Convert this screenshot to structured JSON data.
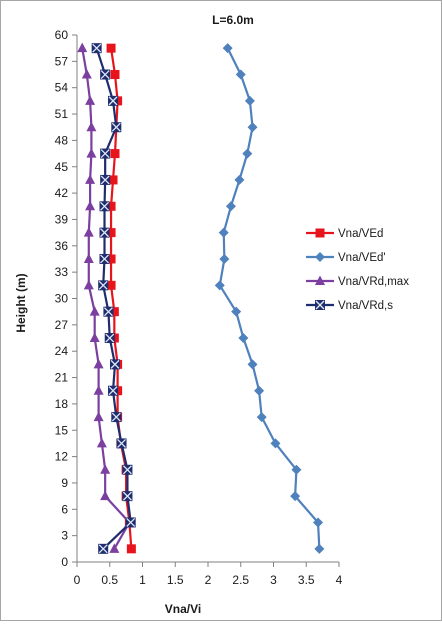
{
  "chart_data": {
    "type": "line",
    "title": "L=6.0m",
    "xlabel": "Vna/Vi",
    "ylabel": "Height (m)",
    "xlim": [
      0,
      4
    ],
    "ylim": [
      0,
      60
    ],
    "xticks": [
      "0",
      "0.5",
      "1",
      "1.5",
      "2",
      "2.5",
      "3",
      "3.5",
      "4"
    ],
    "yticks": [
      "0",
      "3",
      "6",
      "9",
      "12",
      "15",
      "18",
      "21",
      "24",
      "27",
      "30",
      "33",
      "36",
      "39",
      "42",
      "45",
      "48",
      "51",
      "54",
      "57",
      "60"
    ],
    "grid": false,
    "legend_position": "right",
    "series": [
      {
        "name": "Vna/VEd",
        "color": "#e8141c",
        "marker": "square",
        "points": [
          [
            0.83,
            1.5
          ],
          [
            0.8,
            4.5
          ],
          [
            0.75,
            7.5
          ],
          [
            0.75,
            10.5
          ],
          [
            0.67,
            13.5
          ],
          [
            0.62,
            16.5
          ],
          [
            0.62,
            19.5
          ],
          [
            0.62,
            22.5
          ],
          [
            0.57,
            25.5
          ],
          [
            0.57,
            28.5
          ],
          [
            0.52,
            31.5
          ],
          [
            0.52,
            34.5
          ],
          [
            0.52,
            37.5
          ],
          [
            0.52,
            40.5
          ],
          [
            0.55,
            43.5
          ],
          [
            0.58,
            46.5
          ],
          [
            0.6,
            49.5
          ],
          [
            0.62,
            52.5
          ],
          [
            0.58,
            55.5
          ],
          [
            0.52,
            58.5
          ]
        ]
      },
      {
        "name": "Vna/VEd'",
        "color": "#4f81bd",
        "marker": "diamond",
        "points": [
          [
            3.7,
            1.5
          ],
          [
            3.68,
            4.5
          ],
          [
            3.33,
            7.5
          ],
          [
            3.35,
            10.5
          ],
          [
            3.03,
            13.5
          ],
          [
            2.82,
            16.5
          ],
          [
            2.78,
            19.5
          ],
          [
            2.68,
            22.5
          ],
          [
            2.54,
            25.5
          ],
          [
            2.43,
            28.5
          ],
          [
            2.18,
            31.5
          ],
          [
            2.25,
            34.5
          ],
          [
            2.24,
            37.5
          ],
          [
            2.35,
            40.5
          ],
          [
            2.48,
            43.5
          ],
          [
            2.6,
            46.5
          ],
          [
            2.68,
            49.5
          ],
          [
            2.64,
            52.5
          ],
          [
            2.5,
            55.5
          ],
          [
            2.3,
            58.5
          ]
        ]
      },
      {
        "name": "Vna/VRd,max",
        "color": "#7b3fa0",
        "marker": "triangle",
        "points": [
          [
            0.57,
            1.5
          ],
          [
            0.8,
            4.5
          ],
          [
            0.43,
            7.5
          ],
          [
            0.43,
            10.5
          ],
          [
            0.38,
            13.5
          ],
          [
            0.33,
            16.5
          ],
          [
            0.33,
            19.5
          ],
          [
            0.33,
            22.5
          ],
          [
            0.27,
            25.5
          ],
          [
            0.27,
            28.5
          ],
          [
            0.18,
            31.5
          ],
          [
            0.18,
            34.5
          ],
          [
            0.18,
            37.5
          ],
          [
            0.2,
            40.5
          ],
          [
            0.2,
            43.5
          ],
          [
            0.22,
            46.5
          ],
          [
            0.22,
            49.5
          ],
          [
            0.2,
            52.5
          ],
          [
            0.15,
            55.5
          ],
          [
            0.08,
            58.5
          ]
        ]
      },
      {
        "name": "Vna/VRd,s",
        "color": "#1f2d6e",
        "marker": "square-x",
        "points": [
          [
            0.4,
            1.5
          ],
          [
            0.82,
            4.5
          ],
          [
            0.77,
            7.5
          ],
          [
            0.77,
            10.5
          ],
          [
            0.68,
            13.5
          ],
          [
            0.6,
            16.5
          ],
          [
            0.55,
            19.5
          ],
          [
            0.58,
            22.5
          ],
          [
            0.5,
            25.5
          ],
          [
            0.48,
            28.5
          ],
          [
            0.4,
            31.5
          ],
          [
            0.42,
            34.5
          ],
          [
            0.42,
            37.5
          ],
          [
            0.42,
            40.5
          ],
          [
            0.43,
            43.5
          ],
          [
            0.43,
            46.5
          ],
          [
            0.6,
            49.5
          ],
          [
            0.55,
            52.5
          ],
          [
            0.43,
            55.5
          ],
          [
            0.3,
            58.5
          ]
        ]
      }
    ]
  }
}
